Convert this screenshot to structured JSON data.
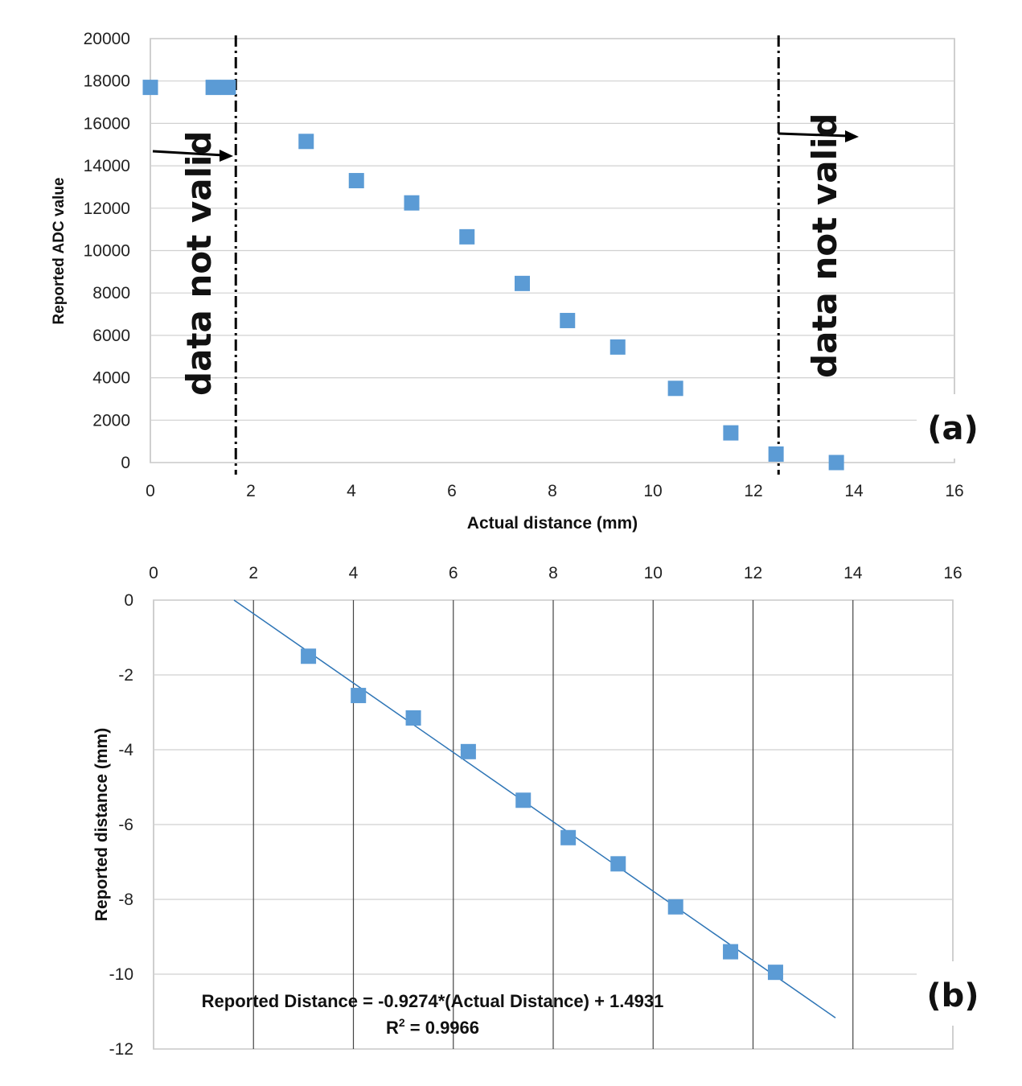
{
  "chart_data": [
    {
      "type": "scatter",
      "panel": "(a)",
      "xlabel": "Actual distance (mm)",
      "ylabel": "Reported ADC value",
      "xlim": [
        0,
        16
      ],
      "ylim": [
        0,
        20000
      ],
      "x_ticks": [
        "0",
        "2",
        "4",
        "6",
        "8",
        "10",
        "12",
        "14",
        "16"
      ],
      "y_ticks": [
        "0",
        "2000",
        "4000",
        "6000",
        "8000",
        "10000",
        "12000",
        "14000",
        "16000",
        "18000",
        "20000"
      ],
      "grid": "horizontal",
      "marker_color": "#5B9BD5",
      "x": [
        0,
        1.25,
        1.55,
        3.1,
        4.1,
        5.2,
        6.3,
        7.4,
        8.3,
        9.3,
        10.45,
        11.55,
        12.45,
        13.65
      ],
      "y": [
        17700,
        17700,
        17700,
        15150,
        13300,
        12250,
        10650,
        8450,
        6700,
        5450,
        3500,
        1400,
        400,
        0
      ],
      "annotations": [
        {
          "text": "data not valid",
          "x": 1.7,
          "side": "left"
        },
        {
          "text": "data not valid",
          "x": 12.5,
          "side": "right"
        }
      ],
      "vlines": [
        1.7,
        12.5
      ]
    },
    {
      "type": "scatter",
      "panel": "(b)",
      "xlabel": "",
      "ylabel": "Reported distance (mm)",
      "xlim": [
        0,
        16
      ],
      "ylim": [
        -12,
        0
      ],
      "x_ticks": [
        "0",
        "2",
        "4",
        "6",
        "8",
        "10",
        "12",
        "14",
        "16"
      ],
      "y_ticks": [
        "0",
        "-2",
        "-4",
        "-6",
        "-8",
        "-10",
        "-12"
      ],
      "grid": "both",
      "marker_color": "#5B9BD5",
      "x": [
        3.1,
        4.1,
        5.2,
        6.3,
        7.4,
        8.3,
        9.3,
        10.45,
        11.55,
        12.45
      ],
      "y": [
        -1.5,
        -2.55,
        -3.15,
        -4.05,
        -5.35,
        -6.35,
        -7.05,
        -8.2,
        -9.4,
        -9.95
      ],
      "trendline": {
        "slope": -0.9274,
        "intercept": 1.4931,
        "x_range": [
          1.61,
          13.65
        ],
        "color": "#2E75B6"
      },
      "equation": "Reported Distance = -0.9274*(Actual Distance) + 1.4931",
      "r2_label": "R",
      "r2_sup": "2",
      "r2_value": " = 0.9966"
    }
  ]
}
